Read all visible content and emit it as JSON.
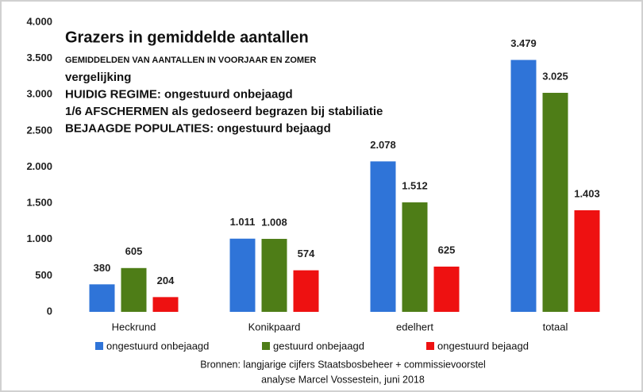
{
  "chart_data": {
    "type": "bar",
    "title": "Grazers in gemiddelde aantallen",
    "subtitle": "GEMIDDELDEN VAN AANTALLEN IN VOORJAAR EN ZOMER",
    "annotations": [
      "vergelijking",
      "HUIDIG REGIME: ongestuurd onbejaagd",
      "1/6 AFSCHERMEN als gedoseerd begrazen bij stabiliatie",
      "BEJAAGDE POPULATIES: ongestuurd bejaagd"
    ],
    "source": [
      "Bronnen:  langjarige cijfers Staatsbosbeheer + commissievoorstel",
      "analyse Marcel Vossestein, juni 2018"
    ],
    "categories": [
      "Heckrund",
      "Konikpaard",
      "edelhert",
      "totaal"
    ],
    "series": [
      {
        "name": "ongestuurd onbejaagd",
        "color": "#2f74d8",
        "values": [
          380,
          1011,
          2078,
          3479
        ],
        "value_labels": [
          "380",
          "1.011",
          "2.078",
          "3.479"
        ]
      },
      {
        "name": "gestuurd onbejaagd",
        "color": "#4e7d17",
        "values": [
          605,
          1008,
          1512,
          3025
        ],
        "value_labels": [
          "605",
          "1.008",
          "1.512",
          "3.025"
        ]
      },
      {
        "name": "ongestuurd bejaagd",
        "color": "#ee1111",
        "values": [
          204,
          574,
          625,
          1403
        ],
        "value_labels": [
          "204",
          "574",
          "625",
          "1.403"
        ]
      }
    ],
    "ylim": [
      0,
      4000
    ],
    "yticks": [
      0,
      500,
      {
        "value": 1000,
        "label": "1.000"
      },
      {
        "value": 1500,
        "label": "1.500"
      },
      {
        "value": 2000,
        "label": "2.000"
      },
      {
        "value": 2500,
        "label": "2.500"
      },
      {
        "value": 3000,
        "label": "3.000"
      },
      {
        "value": 3500,
        "label": "3.500"
      },
      {
        "value": 4000,
        "label": "4.000"
      }
    ],
    "grid": false,
    "legend": "bottom"
  }
}
